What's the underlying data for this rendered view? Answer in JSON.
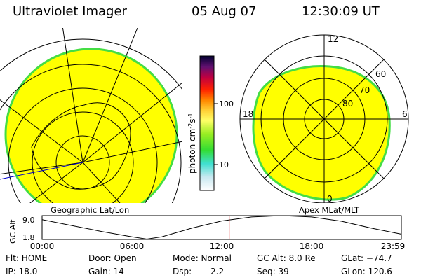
{
  "header": {
    "title": "Ultraviolet Imager",
    "date": "05 Aug 07",
    "time": "12:30:09 UT"
  },
  "colorbar": {
    "unit_label": "photon cm",
    "unit_sup1": "-2",
    "unit_s": "s",
    "unit_sup2": "-1",
    "ticks": [
      {
        "value": 100,
        "label": "100"
      },
      {
        "value": 10,
        "label": "10"
      }
    ],
    "colors": [
      "#ffffff",
      "#bfe8f0",
      "#40e0d0",
      "#33dd33",
      "#88ee22",
      "#ddee44",
      "#ffff66",
      "#ffcc33",
      "#ff8800",
      "#ff2200",
      "#d00030",
      "#800060",
      "#301060",
      "#000040"
    ]
  },
  "geo_panel": {
    "label": "Geographic Lat/Lon"
  },
  "apex_panel": {
    "label": "Apex MLat/MLT",
    "mlt_labels": {
      "top": "12",
      "left": "18",
      "right": "6",
      "bottom": "0"
    },
    "lat_labels": [
      "60",
      "70",
      "80"
    ]
  },
  "timeline": {
    "ylabel": "GC Alt",
    "ytick_top": "9.0",
    "ytick_bottom": "1.8",
    "xticks": [
      "00:00",
      "06:00",
      "12:00",
      "18:00",
      "23:59"
    ]
  },
  "info": {
    "flt": "Flt: HOME",
    "ip": "IP: 18.0",
    "door": "Door: Open",
    "gain": "Gain: 14",
    "mode": "Mode: Normal",
    "dsp_label": "Dsp:",
    "dsp_value": "2.2",
    "gc_alt": "GC Alt: 8.0 Re",
    "seq": "Seq: 39",
    "glat": "GLat: −74.7",
    "glon": "GLon: 120.6"
  },
  "chart_data": {
    "type": "line",
    "xlabel": "",
    "ylabel": "GC Alt",
    "x": [
      "00:00",
      "02:00",
      "04:00",
      "06:00",
      "07:00",
      "08:00",
      "10:00",
      "12:00",
      "14:00",
      "16:00",
      "18:00",
      "20:00",
      "22:00",
      "23:59"
    ],
    "x_hours": [
      0,
      2,
      4,
      6,
      7,
      8,
      10,
      12,
      14,
      16,
      18,
      20,
      22,
      23.98
    ],
    "series": [
      {
        "values": [
          7.8,
          6.0,
          4.2,
          2.6,
          1.9,
          2.6,
          5.2,
          7.4,
          8.6,
          9.0,
          8.6,
          7.3,
          5.2,
          3.4
        ]
      }
    ],
    "ylim": [
      1.8,
      9.0
    ],
    "xlim": [
      "00:00",
      "23:59"
    ],
    "marker_time": "12:30",
    "marker_hours": 12.5,
    "grid": false
  }
}
